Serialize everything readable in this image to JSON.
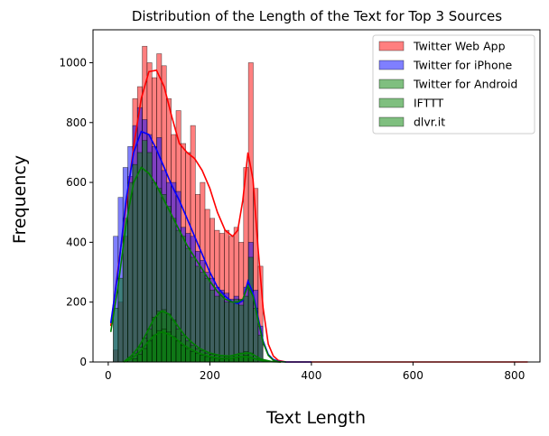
{
  "chart_data": {
    "type": "bar",
    "subtype": "histogram-with-kde",
    "title": "Distribution of the Length of the Text for Top 3 Sources",
    "xlabel": "Text Length",
    "ylabel": "Frequency",
    "xlim": [
      -30,
      850
    ],
    "ylim": [
      0,
      1110
    ],
    "xticks": [
      0,
      200,
      400,
      600,
      800
    ],
    "yticks": [
      0,
      200,
      400,
      600,
      800,
      1000
    ],
    "grid": false,
    "legend_position": "top-right",
    "bin_width": 9.5,
    "series": [
      {
        "name": "Twitter Web App",
        "color": "#ff0000",
        "bin_starts": [
          10,
          19.5,
          29,
          38.5,
          48,
          57.5,
          67,
          76.5,
          86,
          95.5,
          105,
          114.5,
          124,
          133.5,
          143,
          152.5,
          162,
          171.5,
          181,
          190.5,
          200,
          209.5,
          219,
          228.5,
          238,
          247.5,
          257,
          266.5,
          276,
          285.5,
          295
        ],
        "counts": [
          40,
          200,
          420,
          620,
          880,
          920,
          1055,
          1000,
          950,
          1030,
          990,
          880,
          760,
          840,
          730,
          700,
          790,
          560,
          600,
          510,
          480,
          440,
          430,
          440,
          420,
          450,
          400,
          650,
          1000,
          580,
          320
        ],
        "kde_x": [
          5,
          20,
          35,
          50,
          65,
          80,
          95,
          110,
          125,
          140,
          155,
          170,
          185,
          200,
          215,
          230,
          245,
          255,
          265,
          275,
          285,
          295,
          305,
          315,
          325,
          335,
          350,
          400,
          500,
          600,
          700,
          800,
          826
        ],
        "kde_y": [
          120,
          320,
          520,
          720,
          880,
          970,
          975,
          920,
          820,
          730,
          700,
          680,
          640,
          580,
          500,
          440,
          420,
          440,
          540,
          700,
          610,
          380,
          180,
          60,
          20,
          5,
          0,
          0,
          0,
          0,
          0,
          0,
          0
        ]
      },
      {
        "name": "Twitter for iPhone",
        "color": "#0000ff",
        "bin_starts": [
          10,
          19.5,
          29,
          38.5,
          48,
          57.5,
          67,
          76.5,
          86,
          95.5,
          105,
          114.5,
          124,
          133.5,
          143,
          152.5,
          162,
          171.5,
          181,
          190.5,
          200,
          209.5,
          219,
          228.5,
          238,
          247.5,
          257,
          266.5,
          276,
          285.5,
          295
        ],
        "counts": [
          420,
          550,
          650,
          720,
          790,
          850,
          810,
          760,
          720,
          750,
          640,
          600,
          600,
          570,
          450,
          430,
          420,
          370,
          340,
          300,
          280,
          250,
          240,
          230,
          210,
          220,
          210,
          250,
          400,
          240,
          120
        ],
        "kde_x": [
          5,
          20,
          35,
          50,
          65,
          80,
          95,
          110,
          125,
          140,
          155,
          170,
          185,
          200,
          215,
          230,
          245,
          255,
          265,
          275,
          285,
          295,
          305,
          315,
          325,
          335,
          350,
          400
        ],
        "kde_y": [
          130,
          310,
          540,
          700,
          770,
          760,
          710,
          650,
          590,
          540,
          480,
          420,
          360,
          300,
          250,
          220,
          200,
          195,
          205,
          270,
          230,
          150,
          70,
          25,
          8,
          2,
          0,
          0
        ]
      },
      {
        "name": "Twitter for Android",
        "color": "#008000",
        "bin_starts": [
          10,
          19.5,
          29,
          38.5,
          48,
          57.5,
          67,
          76.5,
          86,
          95.5,
          105,
          114.5,
          124,
          133.5,
          143,
          152.5,
          162,
          171.5,
          181,
          190.5,
          200,
          209.5,
          219,
          228.5,
          238,
          247.5,
          257,
          266.5,
          276,
          285.5,
          295
        ],
        "counts": [
          180,
          280,
          480,
          600,
          660,
          700,
          740,
          700,
          600,
          580,
          560,
          520,
          480,
          440,
          420,
          380,
          350,
          320,
          300,
          280,
          240,
          220,
          230,
          200,
          200,
          210,
          190,
          220,
          350,
          180,
          90
        ],
        "kde_x": [
          5,
          20,
          35,
          50,
          65,
          80,
          95,
          110,
          125,
          140,
          155,
          170,
          185,
          200,
          215,
          230,
          245,
          255,
          265,
          275,
          285,
          295,
          305,
          315,
          325,
          335,
          350
        ],
        "kde_y": [
          100,
          260,
          460,
          600,
          650,
          630,
          590,
          540,
          490,
          440,
          390,
          350,
          310,
          270,
          235,
          210,
          200,
          200,
          210,
          255,
          220,
          140,
          65,
          22,
          6,
          1,
          0
        ]
      },
      {
        "name": "IFTTT",
        "color": "#008000",
        "bin_starts": [
          38.5,
          48,
          57.5,
          67,
          76.5,
          86,
          95.5,
          105,
          114.5,
          124,
          133.5,
          143,
          152.5,
          162,
          171.5,
          181,
          190.5,
          200,
          209.5,
          219,
          228.5,
          238,
          247.5,
          257,
          266.5,
          276,
          285.5
        ],
        "counts": [
          15,
          30,
          50,
          80,
          110,
          150,
          170,
          175,
          160,
          140,
          110,
          90,
          70,
          55,
          45,
          38,
          30,
          25,
          22,
          20,
          18,
          20,
          25,
          30,
          35,
          30,
          12
        ],
        "kde_x": [
          30,
          45,
          60,
          75,
          90,
          105,
          120,
          135,
          150,
          165,
          180,
          200,
          220,
          240,
          260,
          280,
          300,
          320,
          340
        ],
        "kde_y": [
          0,
          20,
          50,
          95,
          145,
          170,
          160,
          125,
          90,
          65,
          45,
          30,
          22,
          20,
          28,
          30,
          10,
          2,
          0
        ]
      },
      {
        "name": "dlvr.it",
        "color": "#008000",
        "bin_starts": [
          48,
          57.5,
          67,
          76.5,
          86,
          95.5,
          105,
          114.5,
          124,
          133.5,
          143,
          152.5,
          162,
          171.5,
          181,
          190.5,
          200,
          209.5,
          219,
          228.5,
          238,
          247.5,
          257,
          266.5,
          276
        ],
        "counts": [
          10,
          25,
          45,
          70,
          90,
          105,
          110,
          100,
          85,
          70,
          55,
          45,
          35,
          28,
          22,
          18,
          15,
          12,
          10,
          10,
          12,
          15,
          18,
          22,
          15
        ],
        "kde_x": [
          30,
          45,
          60,
          75,
          90,
          105,
          120,
          135,
          150,
          165,
          180,
          200,
          220,
          240,
          260,
          280,
          300,
          320,
          340
        ],
        "kde_y": [
          0,
          10,
          30,
          60,
          88,
          100,
          92,
          75,
          55,
          40,
          28,
          18,
          12,
          12,
          18,
          16,
          5,
          1,
          0
        ]
      }
    ]
  }
}
